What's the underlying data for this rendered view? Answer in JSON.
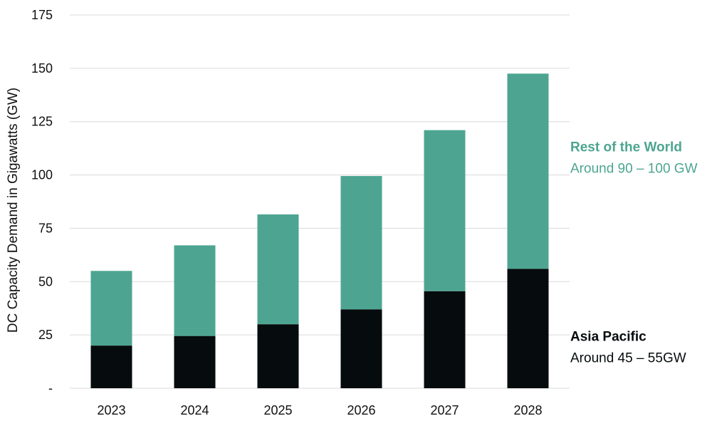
{
  "chart_data": {
    "type": "bar",
    "stacked": true,
    "title": "",
    "xlabel": "",
    "ylabel": "DC Capacity Demand in Gigawatts (GW)",
    "ylim": [
      0,
      175
    ],
    "yticks": [
      0,
      25,
      50,
      75,
      100,
      125,
      150,
      175
    ],
    "ytick_labels": [
      "-",
      "25",
      "50",
      "75",
      "100",
      "125",
      "150",
      "175"
    ],
    "grid": true,
    "legend_placement": "right",
    "categories": [
      "2023",
      "2024",
      "2025",
      "2026",
      "2027",
      "2028"
    ],
    "series": [
      {
        "name": "Asia Pacific",
        "color": "#060b0d",
        "values": [
          20,
          24.5,
          30,
          37,
          45.5,
          56
        ]
      },
      {
        "name": "Rest of the World",
        "color": "#4da591",
        "values": [
          35,
          42.5,
          51.5,
          62.5,
          75.5,
          91.5
        ]
      }
    ],
    "annotations": [
      {
        "series": "Rest of the World",
        "name": "Rest of the World",
        "range": "Around 90 – 100 GW",
        "color": "#4da591"
      },
      {
        "series": "Asia Pacific",
        "name": "Asia Pacific",
        "range": "Around 45 – 55GW",
        "color": "#060b0d"
      }
    ]
  }
}
